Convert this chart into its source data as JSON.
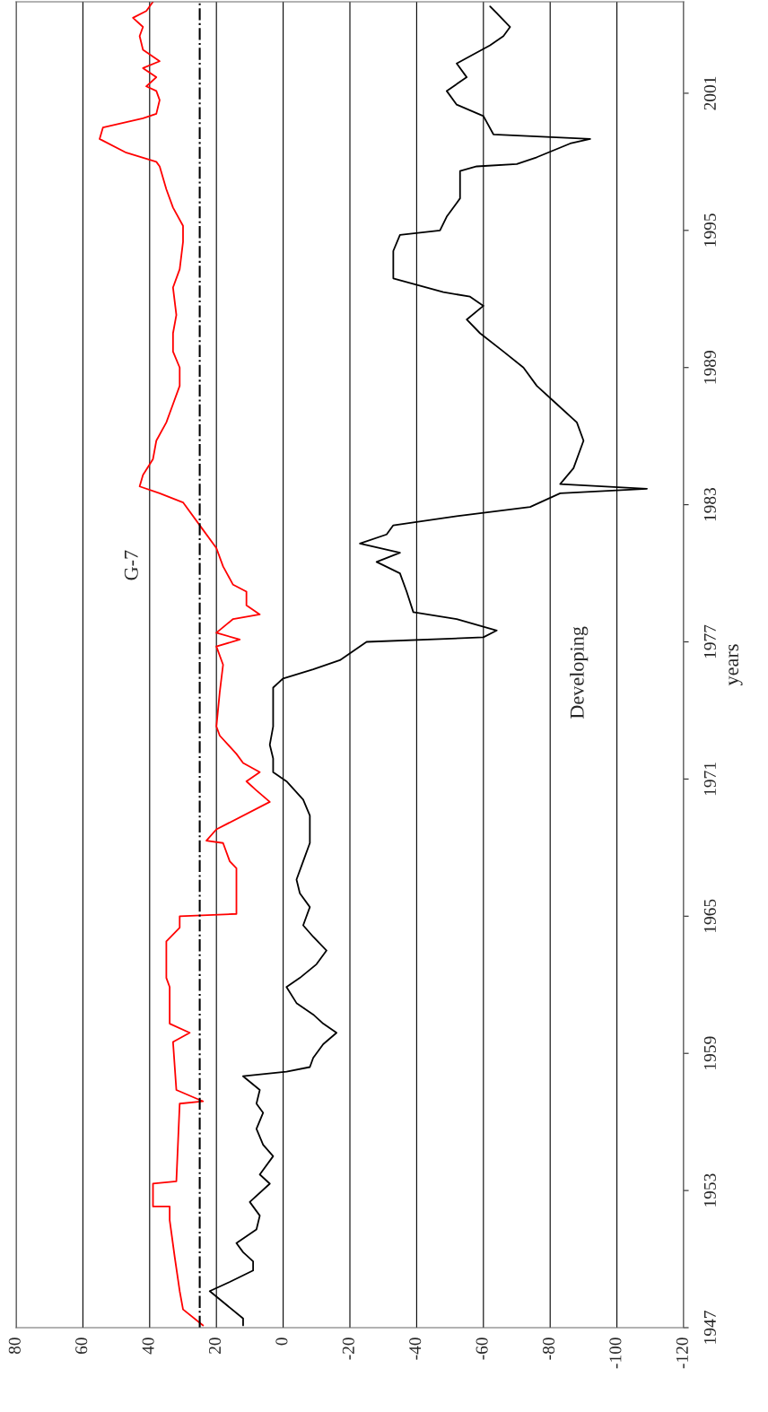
{
  "chart_data": {
    "type": "line",
    "ylabel": "years",
    "ylim": [
      1947,
      2005
    ],
    "yticks": [
      1947,
      1953,
      1959,
      1965,
      1971,
      1977,
      1983,
      1989,
      1995,
      2001
    ],
    "xlim": [
      80,
      -120
    ],
    "xticks": [
      -120,
      -100,
      -80,
      -60,
      -40,
      -20,
      0,
      20,
      40,
      60,
      80
    ],
    "grid": "x",
    "line_style": "solid",
    "marker": "none",
    "annotations": [
      "G-7",
      "Developing"
    ],
    "ref_lines": [
      {
        "axis": "x",
        "value": 25,
        "label": null,
        "color": "#000000",
        "line_style": "dashdot"
      }
    ],
    "series": [
      {
        "color": "#ff0000",
        "values": [
          1947.1,
          1947.8,
          1948.6,
          1950.1,
          1951.7,
          1952.3,
          1952.3,
          1953.3,
          1953.4,
          1956.8,
          1956.9,
          1957.4,
          1959.5,
          1959.9,
          1960.3,
          1961.9,
          1962.3,
          1963.9,
          1964.5,
          1965.0,
          1965.1,
          1967.1,
          1967.4,
          1968.2,
          1968.3,
          1968.8,
          1970.0,
          1970.5,
          1970.9,
          1971.3,
          1971.7,
          1972.1,
          1972.9,
          1973.3,
          1974.8,
          1976.0,
          1976.8,
          1977.1,
          1977.4,
          1978.0,
          1978.2,
          1978.6,
          1979.2,
          1979.5,
          1980.3,
          1981.1,
          1981.9,
          1983.1,
          1983.5,
          1983.8,
          1984.3,
          1985.0,
          1985.8,
          1986.6,
          1987.4,
          1988.2,
          1989.0,
          1989.7,
          1990.5,
          1991.3,
          1992.5,
          1993.3,
          1994.5,
          1995.2,
          1996.0,
          1996.8,
          1997.8,
          1998.0,
          1998.4,
          1999.0,
          1999.5,
          1999.9,
          2000.1,
          2000.7,
          2001.1,
          2001.3,
          2001.7,
          2002.1,
          2002.4,
          2002.9,
          2003.5,
          2003.9,
          2004.3,
          2004.6,
          2005.0
        ],
        "x": [
          24,
          30,
          31,
          32.5,
          34,
          34,
          39,
          39,
          32,
          31,
          24,
          32,
          33,
          28,
          34,
          34,
          35,
          35,
          31,
          31,
          14,
          14,
          16,
          18,
          23,
          20,
          4,
          8,
          11,
          7,
          12,
          14,
          19,
          20,
          19,
          18,
          20,
          13,
          20,
          15,
          7,
          11,
          11,
          15,
          18,
          20,
          24,
          30,
          37,
          43,
          42,
          39,
          38,
          35,
          33,
          31,
          31,
          33,
          33,
          32,
          33,
          31,
          30,
          30,
          33,
          35,
          37,
          38,
          47,
          55,
          54,
          42,
          38,
          37,
          38,
          41,
          38,
          42,
          37,
          42,
          43,
          42,
          45,
          41,
          39
        ]
      },
      {
        "color": "#000000",
        "values": [
          1947.1,
          1947.4,
          1948.6,
          1949.0,
          1949.5,
          1949.9,
          1950.3,
          1950.7,
          1951.3,
          1951.9,
          1952.5,
          1953.3,
          1953.7,
          1954.5,
          1955.0,
          1955.7,
          1956.4,
          1956.8,
          1957.4,
          1958.0,
          1958.2,
          1958.4,
          1958.8,
          1959.4,
          1959.9,
          1960.3,
          1960.7,
          1961.2,
          1961.9,
          1962.3,
          1962.9,
          1963.5,
          1964.1,
          1964.6,
          1965.4,
          1966.0,
          1966.6,
          1967.4,
          1968.2,
          1969.4,
          1970.1,
          1970.9,
          1971.3,
          1971.9,
          1972.5,
          1973.3,
          1974.1,
          1975.0,
          1975.4,
          1975.8,
          1976.2,
          1977.0,
          1977.2,
          1977.5,
          1978.0,
          1978.3,
          1979.2,
          1980.0,
          1980.5,
          1980.9,
          1981.3,
          1981.7,
          1982.1,
          1982.5,
          1982.9,
          1983.5,
          1983.7,
          1983.9,
          1984.6,
          1985.8,
          1986.6,
          1987.4,
          1988.2,
          1989.0,
          1989.7,
          1990.5,
          1991.1,
          1991.7,
          1992.1,
          1992.3,
          1992.9,
          1994.1,
          1994.8,
          1995.0,
          1995.6,
          1996.4,
          1997.6,
          1997.8,
          1997.9,
          1998.2,
          1998.8,
          1999.0,
          1999.2,
          2000.0,
          2000.5,
          2001.1,
          2001.7,
          2002.3,
          2003.1,
          2003.5,
          2003.9,
          2004.5,
          2004.8
        ],
        "x": [
          12,
          12,
          22,
          16,
          9,
          9,
          12,
          14,
          8,
          7,
          10,
          4,
          7,
          3,
          6,
          8,
          6,
          8,
          7,
          12,
          -1,
          -8,
          -9,
          -12,
          -16,
          -12,
          -9,
          -4,
          -1,
          -5,
          -10,
          -13,
          -9,
          -6,
          -8,
          -5,
          -4,
          -6,
          -8,
          -8,
          -6,
          -1,
          3,
          3,
          4,
          3,
          3,
          3,
          0,
          -9,
          -17,
          -25,
          -60,
          -64,
          -52,
          -39,
          -37,
          -35,
          -28,
          -35,
          -23,
          -31,
          -33,
          -52,
          -74,
          -83,
          -109,
          -83,
          -87,
          -90,
          -88,
          -82,
          -76,
          -72,
          -66,
          -59,
          -55,
          -60,
          -56,
          -48,
          -33,
          -33,
          -35,
          -47,
          -49,
          -53,
          -53,
          -58,
          -70,
          -76,
          -86,
          -92,
          -63,
          -60,
          -52,
          -49,
          -55,
          -52,
          -62,
          -66,
          -68,
          -64,
          -62
        ]
      }
    ]
  }
}
